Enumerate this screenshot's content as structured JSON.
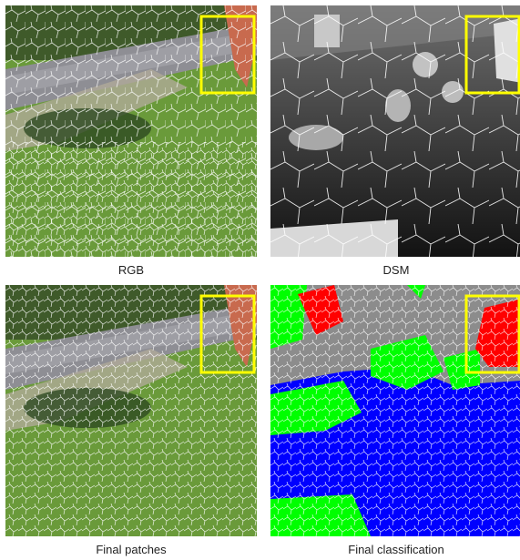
{
  "panels": [
    {
      "id": "rgb",
      "caption": "RGB"
    },
    {
      "id": "dsm",
      "caption": "DSM"
    },
    {
      "id": "patches",
      "caption": "Final patches"
    },
    {
      "id": "classification",
      "caption": "Final classification"
    }
  ],
  "colors": {
    "grass": "#6a9a3a",
    "road": "#9a9aa0",
    "roof": "#c86a4e",
    "highlight_box": "#ffff00",
    "segment_lines": "#ffffff",
    "class_ground": "#0000ff",
    "class_vegetation": "#00ff00",
    "class_building": "#ff0000",
    "class_other": "#8c8c8c"
  }
}
